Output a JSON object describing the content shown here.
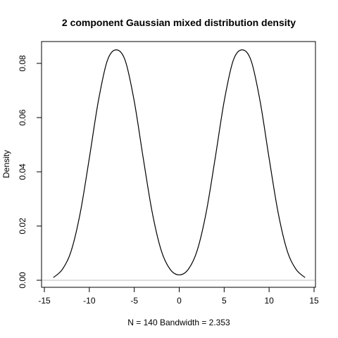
{
  "chart_data": {
    "type": "line",
    "title": "2 component Gaussian mixed distribution density",
    "xlabel": "N = 140   Bandwidth = 2.353",
    "ylabel": "Density",
    "xlim": [
      -15,
      15
    ],
    "ylim": [
      0,
      0.087
    ],
    "xticks": [
      -15,
      -10,
      -5,
      0,
      5,
      10,
      15
    ],
    "yticks": [
      0.0,
      0.02,
      0.04,
      0.06,
      0.08
    ],
    "ytick_labels": [
      "0.00",
      "0.02",
      "0.04",
      "0.06",
      "0.08"
    ],
    "x_range_curve": [
      -14.1,
      14.1
    ],
    "baseline_y": 0,
    "series": [
      {
        "x": [
          -14,
          -13,
          -12,
          -11,
          -10,
          -9,
          -8,
          -7,
          -6,
          -5,
          -4,
          -3,
          -2,
          -1,
          0,
          1,
          2,
          3,
          4,
          5,
          6,
          7,
          8,
          9,
          10,
          11,
          12,
          13,
          14
        ],
        "values": [
          0.001,
          0.004,
          0.011,
          0.025,
          0.045,
          0.066,
          0.081,
          0.085,
          0.081,
          0.066,
          0.045,
          0.025,
          0.011,
          0.004,
          0.002,
          0.004,
          0.011,
          0.025,
          0.045,
          0.066,
          0.081,
          0.085,
          0.081,
          0.066,
          0.045,
          0.025,
          0.011,
          0.004,
          0.001
        ]
      }
    ],
    "grid": false
  }
}
